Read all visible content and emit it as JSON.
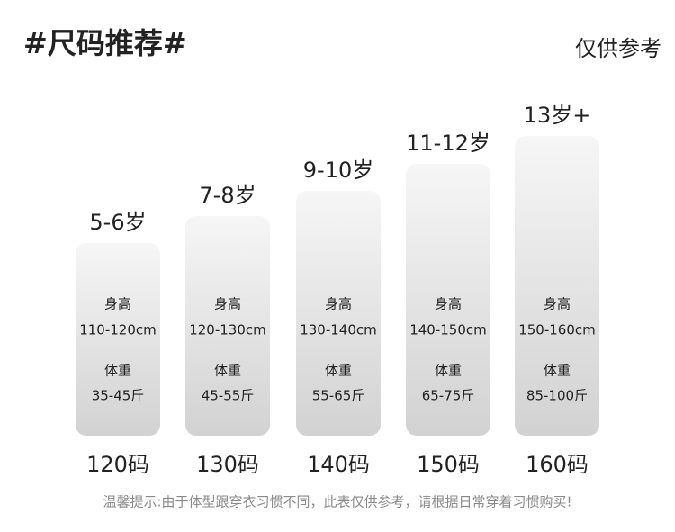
{
  "header": {
    "title": "#尺码推荐#",
    "note": "仅供参考"
  },
  "columns": [
    {
      "age": "5-6岁",
      "height_label": "身高",
      "height": "110-120cm",
      "weight_label": "体重",
      "weight": "35-45斤",
      "size": "120码"
    },
    {
      "age": "7-8岁",
      "height_label": "身高",
      "height": "120-130cm",
      "weight_label": "体重",
      "weight": "45-55斤",
      "size": "130码"
    },
    {
      "age": "9-10岁",
      "height_label": "身高",
      "height": "130-140cm",
      "weight_label": "体重",
      "weight": "55-65斤",
      "size": "140码"
    },
    {
      "age": "11-12岁",
      "height_label": "身高",
      "height": "140-150cm",
      "weight_label": "体重",
      "weight": "65-75斤",
      "size": "150码"
    },
    {
      "age": "13岁+",
      "height_label": "身高",
      "height": "150-160cm",
      "weight_label": "体重",
      "weight": "85-100斤",
      "size": "160码"
    }
  ],
  "footer": "温馨提示:由于体型跟穿衣习惯不同，此表仅供参考，请根据日常穿着习惯购买!"
}
